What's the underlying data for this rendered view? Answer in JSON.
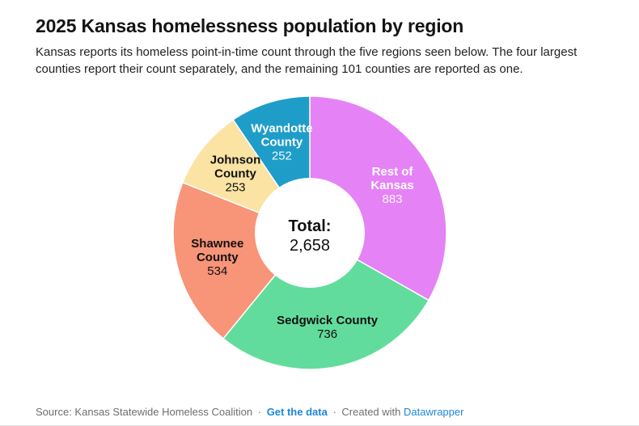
{
  "header": {
    "title": "2025 Kansas homelessness population by region",
    "description": "Kansas reports its homeless point-in-time count through the five regions seen below. The four largest counties report their count separately, and the remaining 101 counties are reported as one."
  },
  "chart_data": {
    "type": "pie",
    "subtype": "donut",
    "title": "2025 Kansas homelessness population by region",
    "direction": "clockwise",
    "start_angle_deg": 0,
    "total": 2658,
    "center_label": "Total:",
    "center_value": "2,658",
    "slices": [
      {
        "label": "Rest of Kansas",
        "label_lines": [
          "Rest of",
          "Kansas"
        ],
        "value": 883,
        "value_text": "883",
        "color": "#E582F6",
        "text_color": "#FFFFFF"
      },
      {
        "label": "Sedgwick County",
        "label_lines": [
          "Sedgwick County"
        ],
        "value": 736,
        "value_text": "736",
        "color": "#62DC9C",
        "text_color": "#111111"
      },
      {
        "label": "Shawnee County",
        "label_lines": [
          "Shawnee",
          "County"
        ],
        "value": 534,
        "value_text": "534",
        "color": "#F89478",
        "text_color": "#111111"
      },
      {
        "label": "Johnson County",
        "label_lines": [
          "Johnson",
          "County"
        ],
        "value": 253,
        "value_text": "253",
        "color": "#FBE3A4",
        "text_color": "#111111"
      },
      {
        "label": "Wyandotte County",
        "label_lines": [
          "Wyandotte",
          "County"
        ],
        "value": 252,
        "value_text": "252",
        "color": "#1E9DC9",
        "text_color": "#FFFFFF"
      }
    ]
  },
  "footer": {
    "source_text": "Source: Kansas Statewide Homeless Coalition",
    "separator": "·",
    "get_data_label": "Get the data",
    "created_with_label": "Created with",
    "datawrapper_label": "Datawrapper",
    "link_color": "#1E87D6",
    "text_color": "#6e6e6e"
  }
}
